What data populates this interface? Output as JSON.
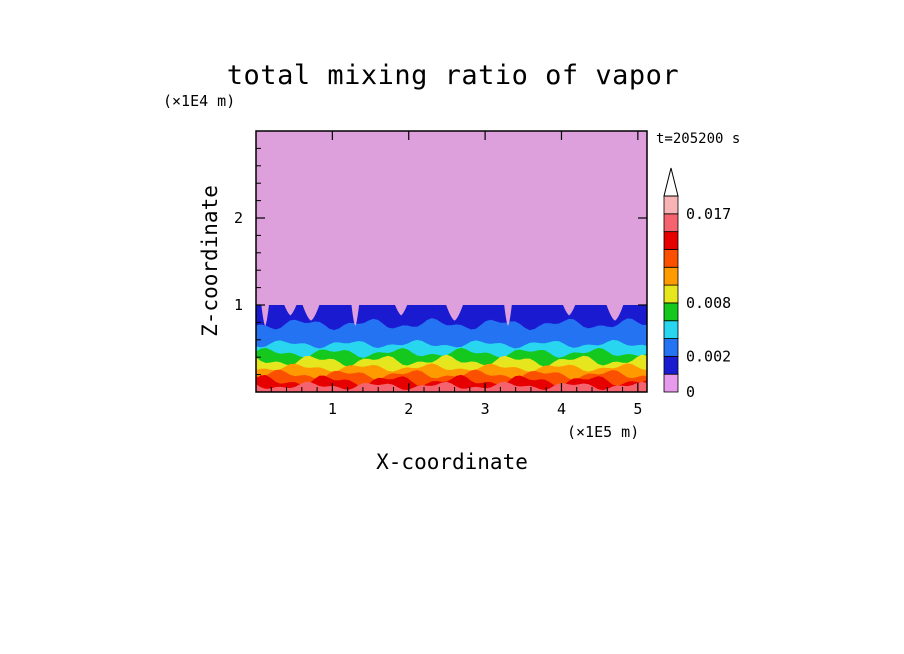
{
  "chart_data": {
    "type": "heatmap",
    "title": "total mixing ratio of vapor",
    "xlabel": "X-coordinate",
    "ylabel": "Z-coordinate",
    "x_unit": "(×1E5 m)",
    "y_unit": "(×1E4 m)",
    "time_label": "t=205200 s",
    "xlim": [
      0,
      5.12
    ],
    "ylim": [
      0,
      3
    ],
    "x_ticks": [
      1,
      2,
      3,
      4,
      5
    ],
    "y_ticks": [
      1,
      2
    ],
    "colorbar": {
      "extend_max": true,
      "levels": [
        0,
        0.001,
        0.002,
        0.004,
        0.006,
        0.008,
        0.01,
        0.012,
        0.014,
        0.016,
        0.017,
        0.02
      ],
      "colors": [
        "#e69aeb",
        "#1a1ad1",
        "#2473f2",
        "#28d6f0",
        "#14c81e",
        "#e6e61e",
        "#ff9a00",
        "#fa5000",
        "#e60000",
        "#f5646e",
        "#f8b4b4"
      ],
      "labels": [
        {
          "value": 0,
          "text": "0"
        },
        {
          "value": 0.002,
          "text": "0.002"
        },
        {
          "value": 0.008,
          "text": "0.008"
        },
        {
          "value": 0.017,
          "text": "0.017"
        }
      ]
    },
    "field_description_bands": [
      {
        "level_index": 0,
        "z_top": 3.0
      },
      {
        "level_index": 1,
        "z_top": 1.0
      },
      {
        "level_index": 2,
        "z_top": 0.78
      },
      {
        "level_index": 3,
        "z_top": 0.55
      },
      {
        "level_index": 4,
        "z_top": 0.45
      },
      {
        "level_index": 5,
        "z_top": 0.36
      },
      {
        "level_index": 6,
        "z_top": 0.28
      },
      {
        "level_index": 7,
        "z_top": 0.2
      },
      {
        "level_index": 8,
        "z_top": 0.13
      },
      {
        "level_index": 9,
        "z_top": 0.07
      }
    ],
    "colors": {
      "background_above": "#dda0dd"
    }
  }
}
